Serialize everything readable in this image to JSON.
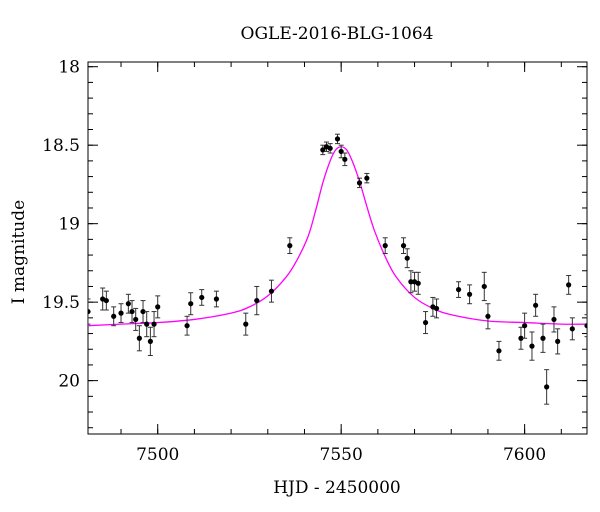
{
  "chart_data": {
    "type": "scatter",
    "title": "OGLE-2016-BLG-1064",
    "xlabel": "HJD - 2450000",
    "ylabel": "I magnitude",
    "xlim": [
      7481,
      7617
    ],
    "ylim": [
      20.34,
      17.97
    ],
    "y_inverted": true,
    "x_ticks": [
      7500,
      7550,
      7600
    ],
    "y_ticks": [
      18,
      18.5,
      19,
      19.5,
      20
    ],
    "x_tick_labels": [
      "7500",
      "7550",
      "7600"
    ],
    "y_tick_labels": [
      "18",
      "18.5",
      "19",
      "19.5",
      "20"
    ],
    "x_minor_step": 10,
    "y_minor_step": 0.1,
    "grid": false,
    "colors": {
      "model": "#ff00ff",
      "points": "#000000",
      "frame": "#000000"
    },
    "model": {
      "name": "",
      "x": [
        7481,
        7490,
        7500,
        7510,
        7520,
        7525,
        7530,
        7535,
        7538,
        7541,
        7543,
        7545,
        7547,
        7548.5,
        7550,
        7551.5,
        7553,
        7555,
        7557,
        7559,
        7562,
        7565,
        7570,
        7575,
        7580,
        7590,
        7600,
        7610,
        7617
      ],
      "y": [
        19.65,
        19.64,
        19.63,
        19.61,
        19.57,
        19.53,
        19.46,
        19.34,
        19.23,
        19.08,
        18.92,
        18.74,
        18.6,
        18.53,
        18.51,
        18.53,
        18.6,
        18.73,
        18.89,
        19.04,
        19.21,
        19.34,
        19.47,
        19.54,
        19.58,
        19.62,
        19.63,
        19.64,
        19.64
      ]
    },
    "series": [
      {
        "name": "",
        "x": [
          7481,
          7485,
          7486,
          7488,
          7490,
          7492,
          7493,
          7494,
          7495,
          7496,
          7497,
          7498,
          7499,
          7500,
          7508,
          7509,
          7512,
          7516,
          7524,
          7527,
          7531,
          7536,
          7545,
          7546,
          7547,
          7549,
          7550,
          7551,
          7555,
          7557,
          7562,
          7567,
          7568,
          7569,
          7570,
          7571,
          7573,
          7575,
          7576,
          7582,
          7585,
          7589,
          7590,
          7593,
          7599,
          7600,
          7602,
          7603,
          7605,
          7606,
          7608,
          7609,
          7612,
          7613,
          7617
        ],
        "y": [
          19.56,
          19.48,
          19.49,
          19.59,
          19.57,
          19.51,
          19.56,
          19.61,
          19.73,
          19.56,
          19.64,
          19.75,
          19.64,
          19.53,
          19.65,
          19.51,
          19.47,
          19.48,
          19.64,
          19.49,
          19.43,
          19.14,
          18.53,
          18.51,
          18.52,
          18.46,
          18.54,
          18.59,
          18.74,
          18.71,
          19.14,
          19.14,
          19.22,
          19.37,
          19.37,
          19.38,
          19.63,
          19.53,
          19.54,
          19.42,
          19.45,
          19.4,
          19.59,
          19.81,
          19.73,
          19.65,
          19.78,
          19.52,
          19.73,
          20.04,
          19.61,
          19.75,
          19.39,
          19.67,
          19.65
        ],
        "err": [
          0.08,
          0.07,
          0.06,
          0.06,
          0.06,
          0.06,
          0.07,
          0.07,
          0.08,
          0.07,
          0.08,
          0.09,
          0.08,
          0.07,
          0.06,
          0.07,
          0.05,
          0.05,
          0.07,
          0.09,
          0.07,
          0.05,
          0.03,
          0.03,
          0.03,
          0.03,
          0.04,
          0.04,
          0.03,
          0.03,
          0.05,
          0.05,
          0.06,
          0.07,
          0.06,
          0.07,
          0.07,
          0.06,
          0.06,
          0.05,
          0.06,
          0.09,
          0.08,
          0.06,
          0.07,
          0.08,
          0.09,
          0.07,
          0.09,
          0.11,
          0.08,
          0.08,
          0.06,
          0.07,
          0.07
        ]
      }
    ]
  }
}
